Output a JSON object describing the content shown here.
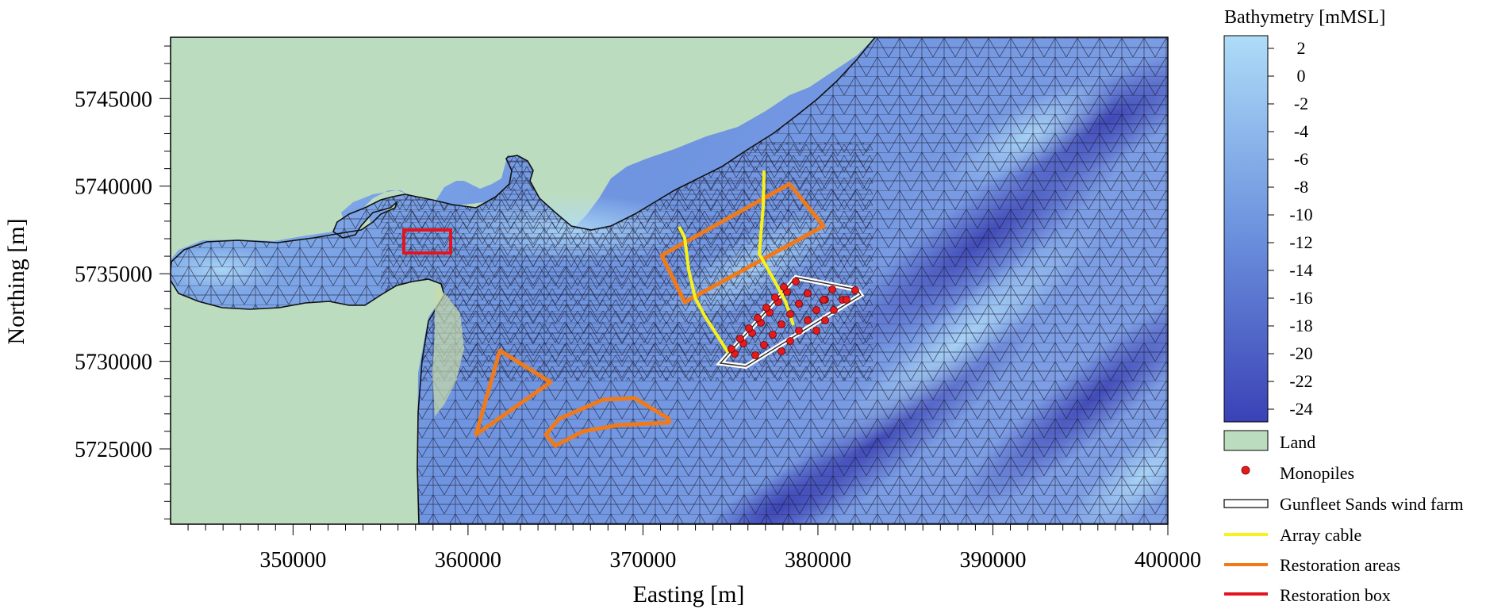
{
  "map": {
    "xlabel": "Easting [m]",
    "ylabel": "Northing [m]",
    "x_ticks": [
      "350000",
      "360000",
      "370000",
      "380000",
      "390000",
      "400000"
    ],
    "y_ticks": [
      "5745000",
      "5740000",
      "5735000",
      "5730000",
      "5725000"
    ]
  },
  "colorbar": {
    "title": "Bathymetry [mMSL]",
    "labels": [
      "2",
      "0",
      "-2",
      "-4",
      "-6",
      "-8",
      "-10",
      "-12",
      "-14",
      "-16",
      "-18",
      "-20",
      "-22",
      "-24"
    ],
    "color_top": "#aedcf8",
    "color_bottom": "#3a42b6"
  },
  "legend": {
    "items": [
      {
        "key": "land",
        "label": "Land",
        "color": "#bcdcc0"
      },
      {
        "key": "monopiles",
        "label": "Monopiles",
        "color": "#e41a1c"
      },
      {
        "key": "windfarm",
        "label": "Gunfleet Sands wind farm",
        "color": "#ffffff"
      },
      {
        "key": "cable",
        "label": "Array cable",
        "color": "#f7f21a"
      },
      {
        "key": "areas",
        "label": "Restoration areas",
        "color": "#f07a1a"
      },
      {
        "key": "box",
        "label": "Restoration box",
        "color": "#e3141e"
      }
    ]
  },
  "colors": {
    "land": "#bcdcc0",
    "water_shallow": "#a8d4f4",
    "water_mid": "#6f94e0",
    "water_deep": "#3c44b8",
    "mesh": "#1a1a2e"
  }
}
